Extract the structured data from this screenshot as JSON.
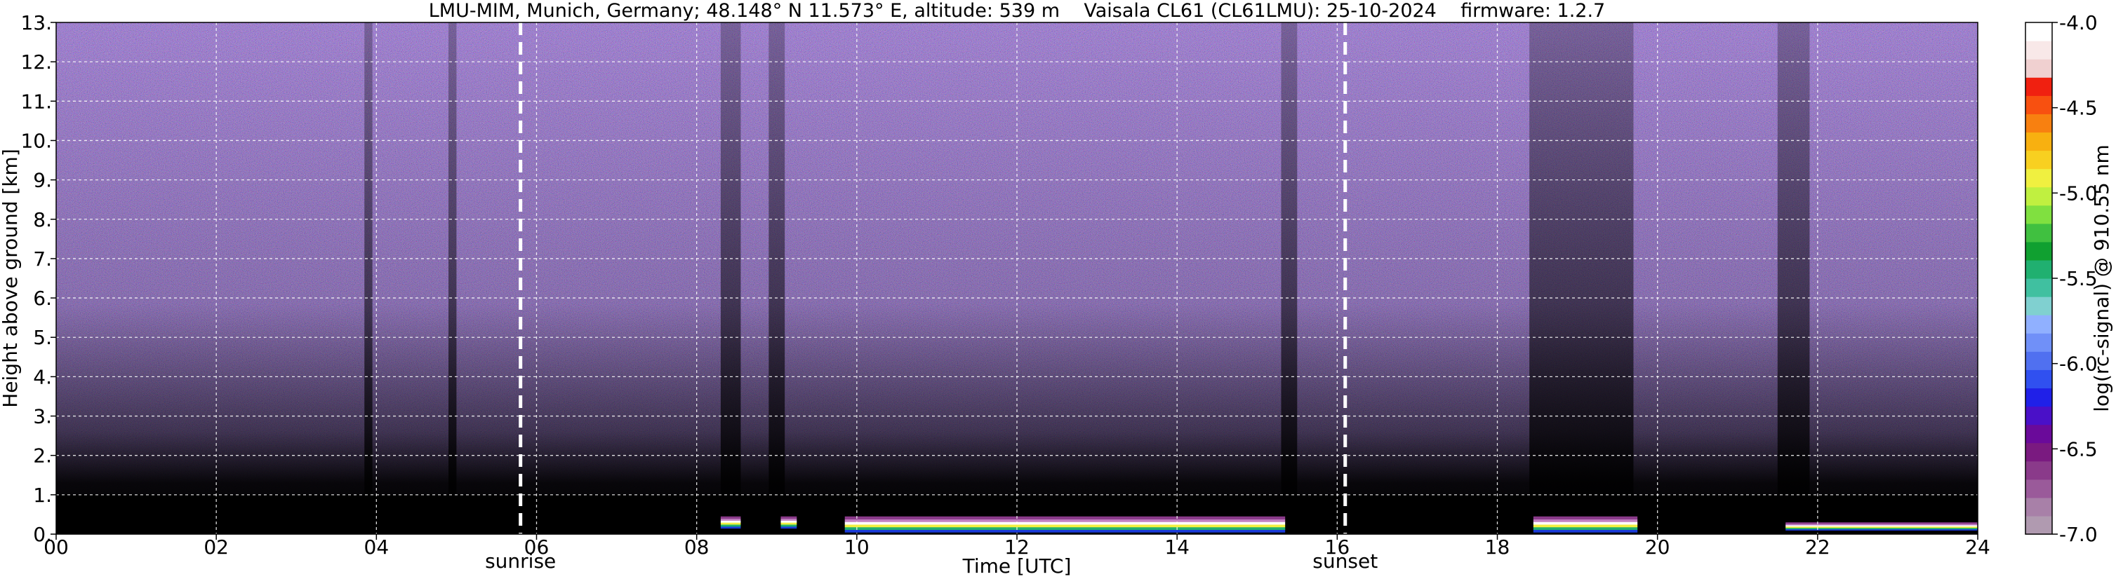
{
  "chart_data": {
    "type": "heatmap",
    "title": "LMU-MIM, Munich, Germany; 48.148° N 11.573° E, altitude: 539 m    Vaisala CL61 (CL61LMU): 25-10-2024    firmware: 1.2.7",
    "xlabel": "Time [UTC]",
    "ylabel": "Height above ground [km]",
    "xlim": [
      0,
      24
    ],
    "ylim": [
      0,
      13
    ],
    "x_ticks": [
      0,
      2,
      4,
      6,
      8,
      10,
      12,
      14,
      16,
      18,
      20,
      22,
      24
    ],
    "x_tick_labels": [
      "00",
      "02",
      "04",
      "06",
      "08",
      "10",
      "12",
      "14",
      "16",
      "18",
      "20",
      "22",
      "24"
    ],
    "y_ticks": [
      0,
      1,
      2,
      3,
      4,
      5,
      6,
      7,
      8,
      9,
      10,
      11,
      12,
      13
    ],
    "y_tick_labels": [
      "0.",
      "1.",
      "2.",
      "3.",
      "4.",
      "5.",
      "6.",
      "7.",
      "8.",
      "9.",
      "10.",
      "11.",
      "12.",
      "13."
    ],
    "grid": true,
    "events": [
      {
        "label": "sunrise",
        "time": 5.8
      },
      {
        "label": "sunset",
        "time": 16.1
      }
    ],
    "colorbar": {
      "label": "log(rc-signal) @ 910.55 nm",
      "range": [
        -7.0,
        -4.0
      ],
      "ticks": [
        -7.0,
        -6.5,
        -6.0,
        -5.5,
        -5.0,
        -4.5,
        -4.0
      ],
      "tick_labels": [
        "-7.0",
        "-6.5",
        "-6.0",
        "-5.5",
        "-5.0",
        "-4.5",
        "-4.0"
      ],
      "colors": [
        "#b09ab0",
        "#a880a8",
        "#9a5a9a",
        "#8a3a8a",
        "#7a1a80",
        "#6a0a9a",
        "#4a10c8",
        "#2020e8",
        "#3050f0",
        "#5070f0",
        "#7090f8",
        "#90b0ff",
        "#80d0d0",
        "#40c0a0",
        "#20b070",
        "#10a030",
        "#40c040",
        "#80e040",
        "#c0f040",
        "#f0f040",
        "#f8d020",
        "#f8b010",
        "#f88010",
        "#f85010",
        "#f02010",
        "#f0d0d0",
        "#f8e8e8",
        "#ffffff"
      ]
    },
    "background_color": "#6a46b0",
    "low_signal_color": "#000000",
    "dark_columns": [
      {
        "start": 3.85,
        "end": 3.95
      },
      {
        "start": 4.9,
        "end": 5.0
      },
      {
        "start": 8.3,
        "end": 8.55
      },
      {
        "start": 8.9,
        "end": 9.1
      },
      {
        "start": 15.3,
        "end": 15.5
      },
      {
        "start": 18.4,
        "end": 19.7
      },
      {
        "start": 21.5,
        "end": 21.9
      }
    ],
    "cloud_layers": [
      {
        "start": 8.3,
        "end": 8.55,
        "base": 0.15,
        "top": 0.45
      },
      {
        "start": 9.05,
        "end": 9.25,
        "base": 0.15,
        "top": 0.45
      },
      {
        "start": 9.85,
        "end": 15.35,
        "base": 0.05,
        "top": 0.45
      },
      {
        "start": 18.45,
        "end": 19.75,
        "base": 0.05,
        "top": 0.45
      },
      {
        "start": 21.6,
        "end": 24.0,
        "base": 0.1,
        "top": 0.3
      }
    ]
  }
}
